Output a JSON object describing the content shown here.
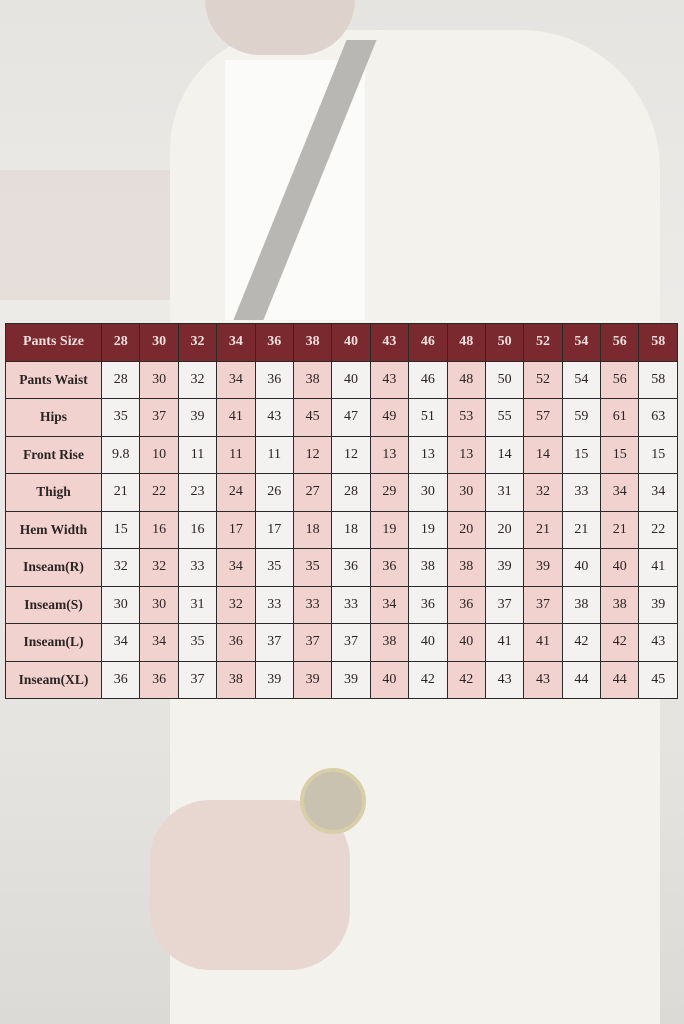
{
  "size_chart": {
    "header_label": "Pants Size",
    "sizes": [
      "28",
      "30",
      "32",
      "34",
      "36",
      "38",
      "40",
      "43",
      "46",
      "48",
      "50",
      "52",
      "54",
      "56",
      "58"
    ],
    "rows": [
      {
        "label": "Pants Waist",
        "values": [
          "28",
          "30",
          "32",
          "34",
          "36",
          "38",
          "40",
          "43",
          "46",
          "48",
          "50",
          "52",
          "54",
          "56",
          "58"
        ]
      },
      {
        "label": "Hips",
        "values": [
          "35",
          "37",
          "39",
          "41",
          "43",
          "45",
          "47",
          "49",
          "51",
          "53",
          "55",
          "57",
          "59",
          "61",
          "63"
        ]
      },
      {
        "label": "Front Rise",
        "values": [
          "9.8",
          "10",
          "11",
          "11",
          "11",
          "12",
          "12",
          "13",
          "13",
          "13",
          "14",
          "14",
          "15",
          "15",
          "15"
        ]
      },
      {
        "label": "Thigh",
        "values": [
          "21",
          "22",
          "23",
          "24",
          "26",
          "27",
          "28",
          "29",
          "30",
          "30",
          "31",
          "32",
          "33",
          "34",
          "34"
        ]
      },
      {
        "label": "Hem Width",
        "values": [
          "15",
          "16",
          "16",
          "17",
          "17",
          "18",
          "18",
          "19",
          "19",
          "20",
          "20",
          "21",
          "21",
          "21",
          "22"
        ]
      },
      {
        "label": "Inseam(R)",
        "values": [
          "32",
          "32",
          "33",
          "34",
          "35",
          "35",
          "36",
          "36",
          "38",
          "38",
          "39",
          "39",
          "40",
          "40",
          "41"
        ]
      },
      {
        "label": "Inseam(S)",
        "values": [
          "30",
          "30",
          "31",
          "32",
          "33",
          "33",
          "33",
          "34",
          "36",
          "36",
          "37",
          "37",
          "38",
          "38",
          "39"
        ]
      },
      {
        "label": "Inseam(L)",
        "values": [
          "34",
          "34",
          "35",
          "36",
          "37",
          "37",
          "37",
          "38",
          "40",
          "40",
          "41",
          "41",
          "42",
          "42",
          "43"
        ]
      },
      {
        "label": "Inseam(XL)",
        "values": [
          "36",
          "36",
          "37",
          "38",
          "39",
          "39",
          "39",
          "40",
          "42",
          "42",
          "43",
          "43",
          "44",
          "44",
          "45"
        ]
      }
    ],
    "colors": {
      "header": "#7a2a2e",
      "highlight": "#f2d2cf",
      "plain": "#f3f2f0"
    }
  }
}
